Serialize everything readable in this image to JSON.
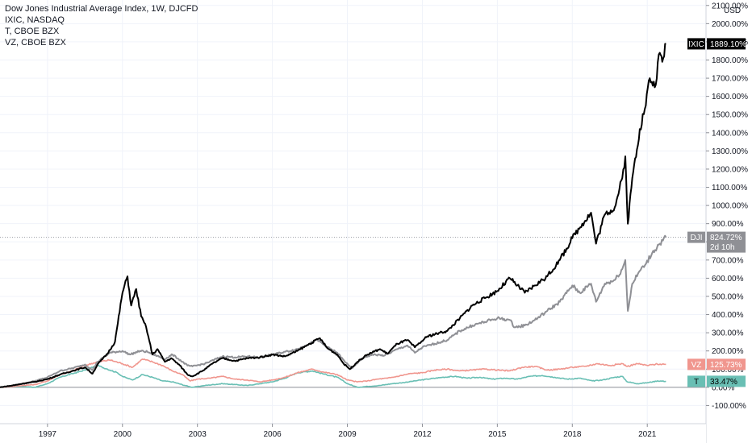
{
  "header": {
    "main_title": "Dow Jones Industrial Average Index, 1W, DJCFD",
    "symbols": [
      "IXIC, NASDAQ",
      "T, CBOE BZX",
      "VZ, CBOE BZX"
    ]
  },
  "chart_data": {
    "type": "line",
    "currency": "USD",
    "x_ticks": [
      "1997",
      "2000",
      "2003",
      "2006",
      "2009",
      "2012",
      "2015",
      "2018",
      "2021"
    ],
    "x_range": [
      1995.1,
      2023.35
    ],
    "y_ticks": [
      "2100.00%",
      "2000.00%",
      "1900.00%",
      "1800.00%",
      "1700.00%",
      "1600.00%",
      "1500.00%",
      "1400.00%",
      "1300.00%",
      "1200.00%",
      "1100.00%",
      "1000.00%",
      "900.00%",
      "800.00%",
      "700.00%",
      "600.00%",
      "500.00%",
      "400.00%",
      "300.00%",
      "200.00%",
      "100.00%",
      "0.00%",
      "-100.00%"
    ],
    "y_tick_values": [
      2100,
      2000,
      1900,
      1800,
      1700,
      1600,
      1500,
      1400,
      1300,
      1200,
      1100,
      1000,
      900,
      800,
      700,
      600,
      500,
      400,
      300,
      200,
      100,
      0,
      -100
    ],
    "y_range": [
      -200,
      2130
    ],
    "series": [
      {
        "name": "IXIC",
        "color": "#000000",
        "last_label": "1889.10%",
        "points": [
          [
            1995.1,
            0
          ],
          [
            1995.6,
            10
          ],
          [
            1996.0,
            20
          ],
          [
            1996.5,
            30
          ],
          [
            1997.0,
            45
          ],
          [
            1997.5,
            70
          ],
          [
            1998.0,
            90
          ],
          [
            1998.5,
            110
          ],
          [
            1998.8,
            75
          ],
          [
            1999.0,
            125
          ],
          [
            1999.4,
            185
          ],
          [
            1999.7,
            250
          ],
          [
            2000.0,
            520
          ],
          [
            2000.2,
            610
          ],
          [
            2000.35,
            450
          ],
          [
            2000.55,
            540
          ],
          [
            2000.75,
            390
          ],
          [
            2000.95,
            330
          ],
          [
            2001.2,
            180
          ],
          [
            2001.4,
            210
          ],
          [
            2001.7,
            140
          ],
          [
            2001.95,
            160
          ],
          [
            2002.3,
            120
          ],
          [
            2002.6,
            70
          ],
          [
            2002.8,
            60
          ],
          [
            2003.2,
            90
          ],
          [
            2003.6,
            130
          ],
          [
            2004.0,
            160
          ],
          [
            2004.5,
            145
          ],
          [
            2005.0,
            160
          ],
          [
            2005.5,
            165
          ],
          [
            2006.0,
            180
          ],
          [
            2006.5,
            170
          ],
          [
            2007.0,
            200
          ],
          [
            2007.5,
            240
          ],
          [
            2007.9,
            270
          ],
          [
            2008.2,
            215
          ],
          [
            2008.6,
            180
          ],
          [
            2008.85,
            130
          ],
          [
            2009.1,
            100
          ],
          [
            2009.4,
            140
          ],
          [
            2009.8,
            180
          ],
          [
            2010.3,
            210
          ],
          [
            2010.6,
            185
          ],
          [
            2011.0,
            240
          ],
          [
            2011.4,
            260
          ],
          [
            2011.7,
            220
          ],
          [
            2012.2,
            280
          ],
          [
            2012.7,
            300
          ],
          [
            2013.0,
            310
          ],
          [
            2013.5,
            380
          ],
          [
            2014.0,
            450
          ],
          [
            2014.5,
            490
          ],
          [
            2015.0,
            530
          ],
          [
            2015.5,
            600
          ],
          [
            2015.8,
            560
          ],
          [
            2016.1,
            520
          ],
          [
            2016.5,
            560
          ],
          [
            2017.0,
            610
          ],
          [
            2017.5,
            700
          ],
          [
            2018.0,
            820
          ],
          [
            2018.4,
            900
          ],
          [
            2018.75,
            960
          ],
          [
            2018.95,
            790
          ],
          [
            2019.3,
            950
          ],
          [
            2019.7,
            990
          ],
          [
            2020.0,
            1150
          ],
          [
            2020.12,
            1270
          ],
          [
            2020.22,
            900
          ],
          [
            2020.4,
            1150
          ],
          [
            2020.7,
            1420
          ],
          [
            2020.9,
            1530
          ],
          [
            2021.1,
            1700
          ],
          [
            2021.3,
            1650
          ],
          [
            2021.5,
            1840
          ],
          [
            2021.6,
            1790
          ],
          [
            2021.75,
            1889
          ]
        ]
      },
      {
        "name": "DJI",
        "color": "#8f9095",
        "last_label": "824.72%",
        "last_sub": "2d 10h",
        "points": [
          [
            1995.1,
            0
          ],
          [
            1995.6,
            10
          ],
          [
            1996.0,
            20
          ],
          [
            1996.5,
            35
          ],
          [
            1997.0,
            55
          ],
          [
            1997.5,
            90
          ],
          [
            1998.0,
            105
          ],
          [
            1998.5,
            125
          ],
          [
            1998.8,
            95
          ],
          [
            1999.0,
            140
          ],
          [
            1999.5,
            190
          ],
          [
            2000.0,
            200
          ],
          [
            2000.3,
            180
          ],
          [
            2000.7,
            200
          ],
          [
            2001.0,
            195
          ],
          [
            2001.7,
            155
          ],
          [
            2002.0,
            180
          ],
          [
            2002.6,
            120
          ],
          [
            2002.8,
            115
          ],
          [
            2003.3,
            130
          ],
          [
            2004.0,
            170
          ],
          [
            2004.5,
            165
          ],
          [
            2005.0,
            170
          ],
          [
            2005.5,
            165
          ],
          [
            2006.0,
            180
          ],
          [
            2006.5,
            195
          ],
          [
            2007.0,
            210
          ],
          [
            2007.8,
            260
          ],
          [
            2008.2,
            220
          ],
          [
            2008.6,
            190
          ],
          [
            2008.9,
            140
          ],
          [
            2009.2,
            105
          ],
          [
            2009.6,
            160
          ],
          [
            2010.0,
            180
          ],
          [
            2010.5,
            175
          ],
          [
            2011.0,
            210
          ],
          [
            2011.4,
            230
          ],
          [
            2011.7,
            190
          ],
          [
            2012.0,
            220
          ],
          [
            2012.5,
            240
          ],
          [
            2013.0,
            260
          ],
          [
            2013.5,
            310
          ],
          [
            2014.0,
            340
          ],
          [
            2014.5,
            360
          ],
          [
            2015.0,
            380
          ],
          [
            2015.5,
            370
          ],
          [
            2015.7,
            330
          ],
          [
            2016.1,
            340
          ],
          [
            2016.5,
            370
          ],
          [
            2017.0,
            420
          ],
          [
            2017.5,
            470
          ],
          [
            2018.0,
            560
          ],
          [
            2018.3,
            520
          ],
          [
            2018.75,
            570
          ],
          [
            2018.95,
            470
          ],
          [
            2019.3,
            570
          ],
          [
            2019.7,
            590
          ],
          [
            2020.0,
            650
          ],
          [
            2020.12,
            700
          ],
          [
            2020.22,
            420
          ],
          [
            2020.4,
            570
          ],
          [
            2020.7,
            640
          ],
          [
            2020.95,
            680
          ],
          [
            2021.2,
            740
          ],
          [
            2021.5,
            790
          ],
          [
            2021.75,
            825
          ]
        ]
      },
      {
        "name": "VZ",
        "color": "#f0968e",
        "last_label": "125.73%",
        "points": [
          [
            1995.1,
            0
          ],
          [
            1995.6,
            5
          ],
          [
            1996.0,
            10
          ],
          [
            1996.5,
            15
          ],
          [
            1997.0,
            35
          ],
          [
            1997.5,
            70
          ],
          [
            1998.0,
            90
          ],
          [
            1998.5,
            120
          ],
          [
            1999.0,
            140
          ],
          [
            1999.5,
            150
          ],
          [
            2000.0,
            130
          ],
          [
            2000.4,
            110
          ],
          [
            2000.8,
            155
          ],
          [
            2001.2,
            140
          ],
          [
            2001.6,
            120
          ],
          [
            2002.0,
            90
          ],
          [
            2002.4,
            70
          ],
          [
            2002.7,
            35
          ],
          [
            2003.0,
            45
          ],
          [
            2003.5,
            50
          ],
          [
            2004.0,
            60
          ],
          [
            2004.5,
            45
          ],
          [
            2005.0,
            40
          ],
          [
            2005.5,
            30
          ],
          [
            2006.0,
            40
          ],
          [
            2006.5,
            55
          ],
          [
            2007.0,
            80
          ],
          [
            2007.6,
            100
          ],
          [
            2008.0,
            85
          ],
          [
            2008.6,
            70
          ],
          [
            2009.0,
            40
          ],
          [
            2009.4,
            30
          ],
          [
            2009.8,
            35
          ],
          [
            2010.2,
            45
          ],
          [
            2010.6,
            50
          ],
          [
            2011.0,
            60
          ],
          [
            2011.5,
            75
          ],
          [
            2012.0,
            80
          ],
          [
            2012.5,
            95
          ],
          [
            2013.0,
            100
          ],
          [
            2013.5,
            90
          ],
          [
            2014.0,
            95
          ],
          [
            2014.5,
            100
          ],
          [
            2015.0,
            95
          ],
          [
            2015.5,
            90
          ],
          [
            2016.0,
            110
          ],
          [
            2016.5,
            115
          ],
          [
            2017.0,
            95
          ],
          [
            2017.5,
            100
          ],
          [
            2018.0,
            110
          ],
          [
            2018.5,
            115
          ],
          [
            2019.0,
            130
          ],
          [
            2019.5,
            120
          ],
          [
            2020.0,
            130
          ],
          [
            2020.2,
            115
          ],
          [
            2020.6,
            130
          ],
          [
            2021.0,
            120
          ],
          [
            2021.4,
            128
          ],
          [
            2021.75,
            126
          ]
        ]
      },
      {
        "name": "T",
        "color": "#69bfb4",
        "last_label": "33.47%",
        "points": [
          [
            1995.1,
            0
          ],
          [
            1995.6,
            5
          ],
          [
            1996.0,
            5
          ],
          [
            1996.5,
            0
          ],
          [
            1997.0,
            20
          ],
          [
            1997.5,
            55
          ],
          [
            1998.0,
            75
          ],
          [
            1998.5,
            95
          ],
          [
            1999.0,
            120
          ],
          [
            1999.4,
            100
          ],
          [
            1999.8,
            80
          ],
          [
            2000.0,
            60
          ],
          [
            2000.4,
            40
          ],
          [
            2000.8,
            70
          ],
          [
            2001.2,
            55
          ],
          [
            2001.6,
            35
          ],
          [
            2002.0,
            30
          ],
          [
            2002.5,
            10
          ],
          [
            2002.8,
            0
          ],
          [
            2003.3,
            10
          ],
          [
            2004.0,
            20
          ],
          [
            2004.5,
            15
          ],
          [
            2005.0,
            10
          ],
          [
            2005.5,
            20
          ],
          [
            2006.0,
            30
          ],
          [
            2006.5,
            50
          ],
          [
            2007.0,
            80
          ],
          [
            2007.6,
            90
          ],
          [
            2008.0,
            75
          ],
          [
            2008.6,
            55
          ],
          [
            2009.0,
            20
          ],
          [
            2009.4,
            0
          ],
          [
            2009.8,
            5
          ],
          [
            2010.3,
            10
          ],
          [
            2010.8,
            20
          ],
          [
            2011.2,
            25
          ],
          [
            2011.7,
            35
          ],
          [
            2012.2,
            45
          ],
          [
            2012.8,
            55
          ],
          [
            2013.3,
            60
          ],
          [
            2013.8,
            50
          ],
          [
            2014.3,
            55
          ],
          [
            2014.8,
            45
          ],
          [
            2015.3,
            50
          ],
          [
            2015.8,
            45
          ],
          [
            2016.3,
            60
          ],
          [
            2016.8,
            65
          ],
          [
            2017.3,
            55
          ],
          [
            2017.8,
            45
          ],
          [
            2018.3,
            50
          ],
          [
            2018.8,
            35
          ],
          [
            2019.2,
            40
          ],
          [
            2019.7,
            55
          ],
          [
            2020.0,
            60
          ],
          [
            2020.2,
            30
          ],
          [
            2020.6,
            20
          ],
          [
            2021.0,
            25
          ],
          [
            2021.4,
            35
          ],
          [
            2021.75,
            33
          ]
        ]
      }
    ]
  }
}
